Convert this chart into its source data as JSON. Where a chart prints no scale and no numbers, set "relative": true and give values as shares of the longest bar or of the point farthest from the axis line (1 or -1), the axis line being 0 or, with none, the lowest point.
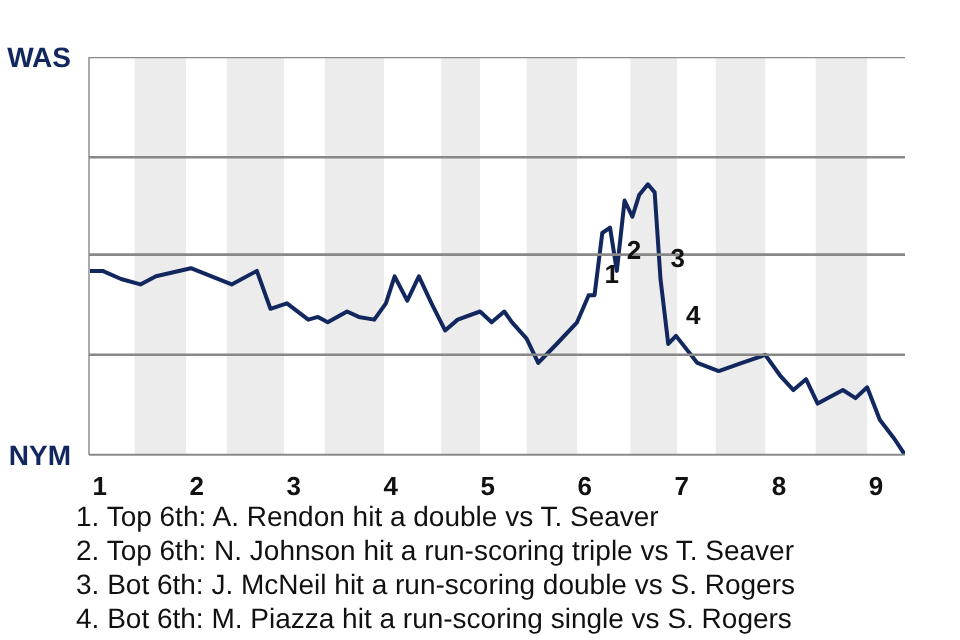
{
  "chart_data": {
    "type": "line",
    "color": "#12275e",
    "line_style": "solid",
    "marker": "none",
    "relative": true,
    "ref_lines": [
      {
        "axis": "y",
        "value": 0,
        "label": "NYM",
        "color": "#888888"
      },
      {
        "axis": "y",
        "value": 0.37,
        "label": null,
        "color": "#888888"
      },
      {
        "axis": "y",
        "value": 0.74,
        "label": null,
        "color": "#888888"
      },
      {
        "axis": "y",
        "value": 1.1,
        "label": null,
        "color": "#888888"
      },
      {
        "axis": "y",
        "value": 1.47,
        "label": "WAS",
        "color": "#888888"
      }
    ],
    "x": [
      0.89,
      1.03,
      1.22,
      1.42,
      1.58,
      1.94,
      2.36,
      2.62,
      2.76,
      2.93,
      3.15,
      3.25,
      3.35,
      3.55,
      3.67,
      3.83,
      3.95,
      4.04,
      4.17,
      4.29,
      4.42,
      4.56,
      4.69,
      4.92,
      5.04,
      5.17,
      5.25,
      5.4,
      5.52,
      5.71,
      5.92,
      6.04,
      6.1,
      6.18,
      6.26,
      6.33,
      6.41,
      6.49,
      6.56,
      6.65,
      6.72,
      6.78,
      6.86,
      6.94,
      7.16,
      7.38,
      7.62,
      7.86,
      8.02,
      8.15,
      8.28,
      8.4,
      8.66,
      8.79,
      8.91,
      9.04,
      9.19,
      9.3
    ],
    "values": [
      0.68,
      0.68,
      0.65,
      0.63,
      0.66,
      0.69,
      0.63,
      0.68,
      0.54,
      0.56,
      0.5,
      0.51,
      0.49,
      0.53,
      0.51,
      0.5,
      0.56,
      0.66,
      0.57,
      0.66,
      0.56,
      0.46,
      0.5,
      0.53,
      0.49,
      0.53,
      0.49,
      0.43,
      0.34,
      0.41,
      0.49,
      0.59,
      0.59,
      0.82,
      0.84,
      0.68,
      0.94,
      0.88,
      0.96,
      1.0,
      0.97,
      0.65,
      0.41,
      0.44,
      0.34,
      0.31,
      0.34,
      0.37,
      0.29,
      0.24,
      0.28,
      0.19,
      0.24,
      0.21,
      0.25,
      0.13,
      0.06,
      0.0
    ],
    "xlim": [
      0.89,
      9.3
    ],
    "xticks": [
      1,
      2,
      3,
      4,
      5,
      6,
      7,
      8,
      9
    ],
    "bands": [
      {
        "axis": "x",
        "from": 1.36,
        "to": 1.89,
        "color": "#ececec"
      },
      {
        "axis": "x",
        "from": 2.31,
        "to": 2.9,
        "color": "#ececec"
      },
      {
        "axis": "x",
        "from": 3.32,
        "to": 3.93,
        "color": "#ececec"
      },
      {
        "axis": "x",
        "from": 4.52,
        "to": 4.92,
        "color": "#ececec"
      },
      {
        "axis": "x",
        "from": 5.4,
        "to": 5.92,
        "color": "#ececec"
      },
      {
        "axis": "x",
        "from": 6.47,
        "to": 6.95,
        "color": "#ececec"
      },
      {
        "axis": "x",
        "from": 7.35,
        "to": 7.86,
        "color": "#ececec"
      },
      {
        "axis": "x",
        "from": 8.38,
        "to": 8.91,
        "color": "#ececec"
      }
    ],
    "annotations": [
      {
        "text": "1",
        "x": 6.1,
        "y": 0.59
      },
      {
        "text": "2",
        "x": 6.33,
        "y": 0.68
      },
      {
        "text": "3",
        "x": 6.78,
        "y": 0.65
      },
      {
        "text": "4",
        "x": 6.94,
        "y": 0.44
      },
      "1. Top 6th: A. Rendon hit a double vs T. Seaver",
      "2. Top 6th: N. Johnson hit a run-scoring triple vs T. Seaver",
      "3. Bot 6th: J. McNeil hit a run-scoring double vs S. Rogers",
      "4. Bot 6th: M. Piazza hit a run-scoring single vs S. Rogers"
    ]
  }
}
